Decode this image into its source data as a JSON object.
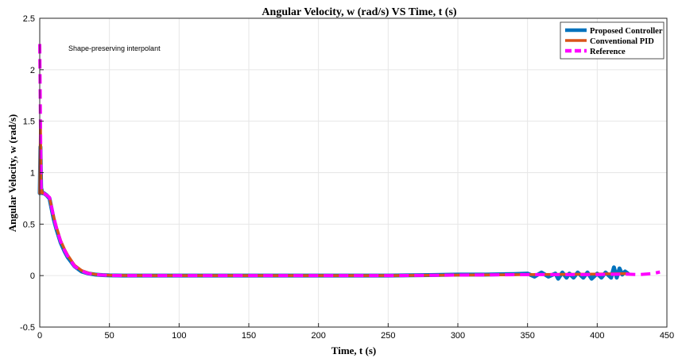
{
  "chart_data": {
    "type": "line",
    "title": "Angular Velocity, w (rad/s) VS Time, t (s)",
    "xlabel": "Time, t (s)",
    "ylabel": "Angular Velocity, w (rad/s)",
    "xlim": [
      0,
      450
    ],
    "ylim": [
      -0.5,
      2.5
    ],
    "xticks": [
      0,
      50,
      100,
      150,
      200,
      250,
      300,
      350,
      400,
      450
    ],
    "yticks": [
      -0.5,
      0,
      0.5,
      1,
      1.5,
      2,
      2.5
    ],
    "grid": true,
    "legend_position": "top-right",
    "annotation": "Shape-preserving interpolant",
    "series": [
      {
        "name": "Proposed Controller",
        "color": "#0072BD",
        "x": [
          0,
          0.5,
          1,
          2,
          3,
          5,
          7,
          10,
          12,
          15,
          18,
          20,
          25,
          30,
          35,
          40,
          45,
          50,
          60,
          80,
          100,
          150,
          200,
          250,
          280,
          300,
          320,
          340,
          350,
          355,
          360,
          365,
          370,
          372,
          375,
          378,
          380,
          383,
          386,
          390,
          393,
          396,
          400,
          403,
          406,
          410,
          412,
          414,
          416,
          418,
          420,
          422
        ],
        "y": [
          0.8,
          1.25,
          0.85,
          0.8,
          0.8,
          0.78,
          0.75,
          0.55,
          0.45,
          0.32,
          0.23,
          0.18,
          0.09,
          0.04,
          0.02,
          0.01,
          0.005,
          0.002,
          0,
          0,
          0,
          0,
          0,
          0,
          0.005,
          0.01,
          0.01,
          0.015,
          0.02,
          -0.01,
          0.03,
          -0.01,
          0.02,
          -0.03,
          0.03,
          -0.02,
          0.02,
          -0.02,
          0.03,
          -0.02,
          0.03,
          -0.03,
          0.02,
          -0.02,
          0.03,
          -0.02,
          0.08,
          -0.02,
          0.07,
          0.01,
          0.04,
          0.02
        ]
      },
      {
        "name": "Conventional PID",
        "color": "#D95319",
        "x": [
          0,
          0.5,
          1,
          2,
          3,
          5,
          7,
          10,
          12,
          15,
          18,
          20,
          25,
          30,
          35,
          40,
          45,
          50,
          60,
          80,
          100,
          150,
          200,
          250,
          300,
          350,
          400,
          422
        ],
        "y": [
          0.8,
          1.5,
          0.85,
          0.8,
          0.8,
          0.78,
          0.76,
          0.57,
          0.47,
          0.34,
          0.25,
          0.2,
          0.1,
          0.05,
          0.025,
          0.012,
          0.006,
          0.003,
          0.001,
          0,
          0,
          0,
          0,
          0,
          0.005,
          0.01,
          0.015,
          0.02
        ]
      },
      {
        "name": "Reference",
        "color": "#FF00FF",
        "dashed": true,
        "x": [
          0,
          0.5,
          1,
          2,
          3,
          5,
          7,
          10,
          12,
          15,
          18,
          20,
          25,
          30,
          35,
          40,
          45,
          50,
          60,
          80,
          100,
          150,
          200,
          250,
          300,
          350,
          400,
          420,
          430,
          440,
          445
        ],
        "y": [
          2.25,
          1.5,
          0.85,
          0.8,
          0.8,
          0.78,
          0.76,
          0.57,
          0.46,
          0.33,
          0.24,
          0.19,
          0.09,
          0.045,
          0.02,
          0.01,
          0.005,
          0.002,
          0,
          0,
          0,
          0,
          0,
          0,
          0.005,
          0.01,
          0.01,
          0.015,
          0.01,
          0.02,
          0.035
        ]
      }
    ]
  }
}
